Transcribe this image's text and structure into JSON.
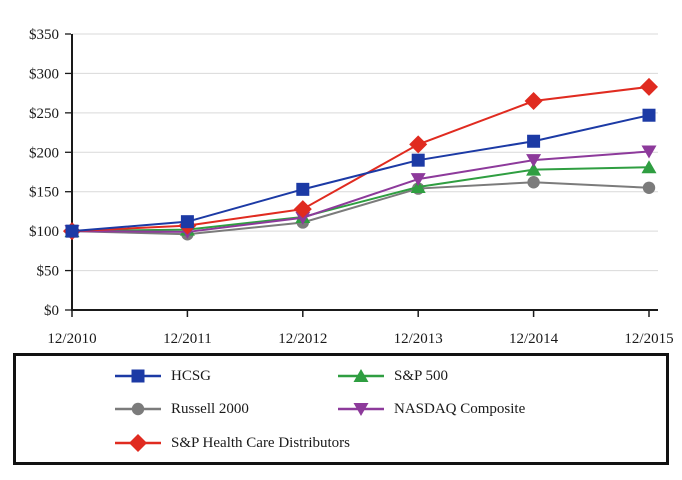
{
  "page": {
    "background": "#ffffff",
    "description": "Comparison of 5 Year Cumulative Total Return line chart with legend box"
  },
  "chart_data": {
    "type": "line",
    "title": "",
    "xlabel": "",
    "ylabel": "",
    "categories": [
      "12/2010",
      "12/2011",
      "12/2012",
      "12/2013",
      "12/2014",
      "12/2015"
    ],
    "series": [
      {
        "name": "HCSG",
        "color": "#1c3aa5",
        "marker": "square",
        "values": [
          100,
          112,
          153,
          190,
          214,
          247
        ]
      },
      {
        "name": "S&P 500",
        "color": "#2f9e41",
        "marker": "triangle-up",
        "values": [
          100,
          102,
          118,
          156,
          178,
          181
        ]
      },
      {
        "name": "Russell 2000",
        "color": "#7b7b7b",
        "marker": "circle",
        "values": [
          100,
          96,
          111,
          154,
          162,
          155
        ]
      },
      {
        "name": "NASDAQ Composite",
        "color": "#8d3a9b",
        "marker": "triangle-down",
        "values": [
          100,
          99,
          117,
          166,
          190,
          201
        ]
      },
      {
        "name": "S&P Health Care Distributors",
        "color": "#e02b20",
        "marker": "diamond",
        "values": [
          100,
          107,
          128,
          210,
          265,
          283
        ]
      }
    ],
    "ylim": [
      0,
      350
    ],
    "ytick_step": 50,
    "ytick_labels": [
      "$0",
      "$50",
      "$100",
      "$150",
      "$200",
      "$250",
      "$300",
      "$350"
    ],
    "grid": true,
    "grid_color": "#d9d9d9",
    "axis_color": "#1a1a1a",
    "legend_position": "bottom-box"
  }
}
